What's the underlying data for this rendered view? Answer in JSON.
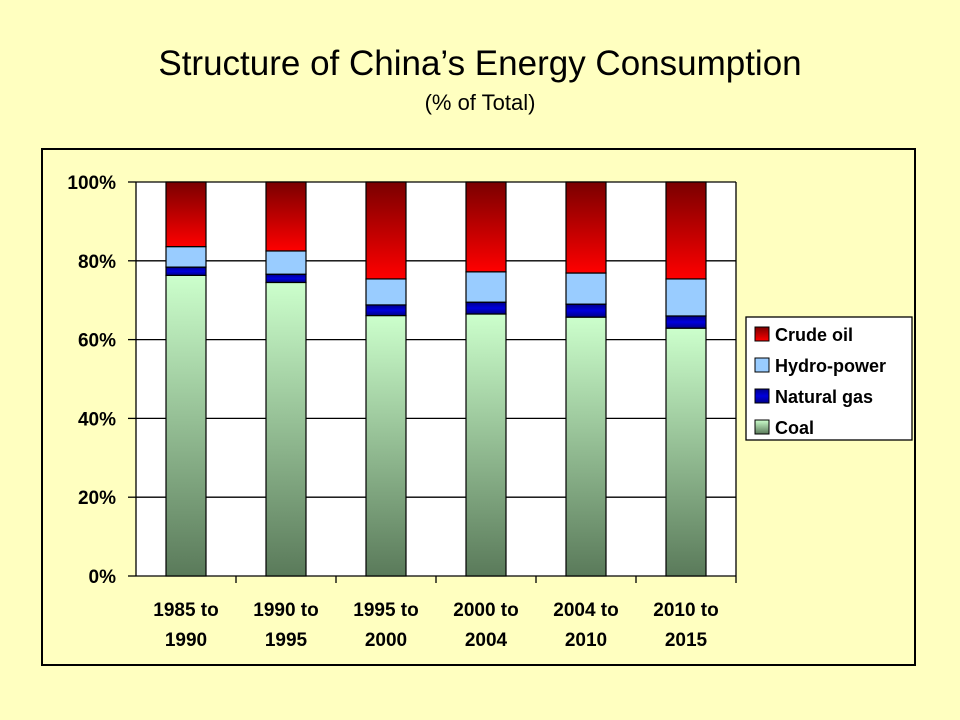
{
  "chart_data": {
    "type": "bar",
    "stacked": true,
    "title": "Structure of China’s Energy Consumption",
    "subtitle": "(% of Total)",
    "xlabel": "",
    "ylabel": "",
    "ylim": [
      0,
      100
    ],
    "yticks": [
      0,
      20,
      40,
      60,
      80,
      100
    ],
    "ytick_labels": [
      "0%",
      "20%",
      "40%",
      "60%",
      "80%",
      "100%"
    ],
    "grid": true,
    "legend_position": "right",
    "categories": [
      [
        "1985 to",
        "1990"
      ],
      [
        "1990 to",
        "1995"
      ],
      [
        "1995 to",
        "2000"
      ],
      [
        "2000 to",
        "2004"
      ],
      [
        "2004 to",
        "2010"
      ],
      [
        "2010 to",
        "2015"
      ]
    ],
    "series": [
      {
        "name": "Coal",
        "values": [
          76.3,
          74.5,
          66.1,
          66.5,
          65.7,
          62.9
        ],
        "color_top": "#ccffcc",
        "color_bottom": "#5a7a5a"
      },
      {
        "name": "Natural gas",
        "values": [
          2.1,
          2.1,
          2.7,
          3.0,
          3.3,
          3.1
        ],
        "color": "#0000aa"
      },
      {
        "name": "Hydro-power",
        "values": [
          5.2,
          5.9,
          6.6,
          7.7,
          7.9,
          9.4
        ],
        "color": "#99ccff"
      },
      {
        "name": "Crude oil",
        "values": [
          16.4,
          17.5,
          24.6,
          22.8,
          23.1,
          24.6
        ],
        "color_top": "#7a0000",
        "color_bottom": "#ff0000"
      }
    ],
    "legend_order": [
      "Crude oil",
      "Hydro-power",
      "Natural gas",
      "Coal"
    ]
  }
}
